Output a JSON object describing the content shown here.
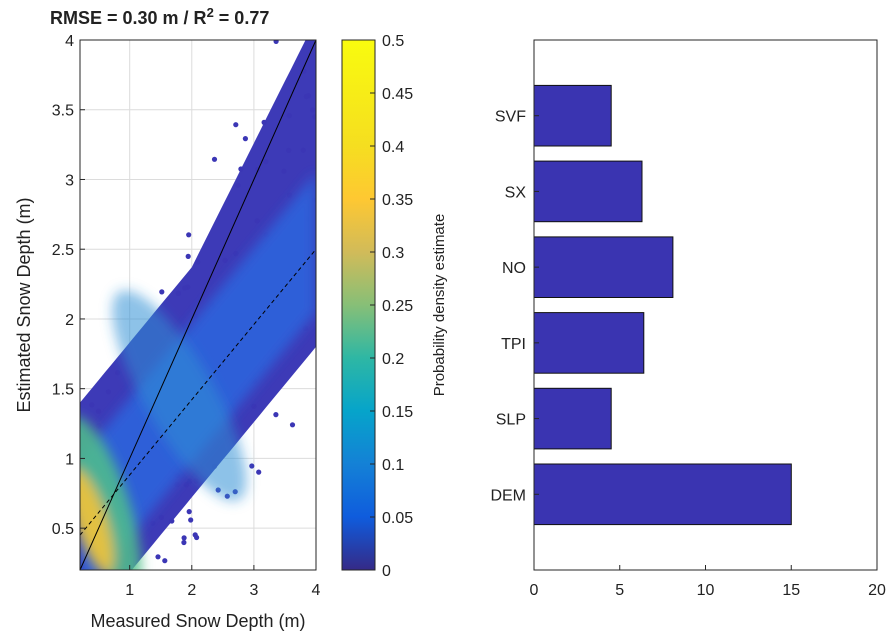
{
  "chart_data": [
    {
      "type": "scatter",
      "title": "RMSE = 0.30 m  /  R",
      "title_superscript": "2",
      "title_suffix": " = 0.77",
      "xlabel": "Measured Snow Depth (m)",
      "ylabel": "Estimated Snow Depth (m)",
      "xlim": [
        0.2,
        4
      ],
      "ylim": [
        0.2,
        4
      ],
      "x_ticks": [
        "1",
        "2",
        "3",
        "4"
      ],
      "y_ticks": [
        "0.5",
        "1",
        "1.5",
        "2",
        "2.5",
        "3",
        "3.5",
        "4"
      ],
      "grid": true,
      "density_colored": true,
      "lines": [
        {
          "kind": "1:1 line",
          "style": "solid",
          "x": [
            0.2,
            4
          ],
          "y": [
            0.2,
            4
          ]
        },
        {
          "kind": "regression fit",
          "style": "dashed",
          "x": [
            0.2,
            4
          ],
          "y": [
            0.45,
            2.5
          ]
        }
      ],
      "colorbar": {
        "label": "Probability density estimate",
        "range": [
          0,
          0.5
        ],
        "ticks": [
          "0",
          "0.05",
          "0.1",
          "0.15",
          "0.2",
          "0.25",
          "0.3",
          "0.35",
          "0.4",
          "0.45",
          "0.5"
        ],
        "colormap": "parula"
      }
    },
    {
      "type": "bar",
      "orientation": "horizontal",
      "categories": [
        "DEM",
        "SLP",
        "TPI",
        "NO",
        "SX",
        "SVF"
      ],
      "values": [
        15.0,
        4.5,
        6.4,
        8.1,
        6.3,
        4.5
      ],
      "xlim": [
        0,
        20
      ],
      "x_ticks": [
        "0",
        "5",
        "10",
        "15",
        "20"
      ],
      "bar_color": "#3a34b1",
      "grid": false
    }
  ]
}
